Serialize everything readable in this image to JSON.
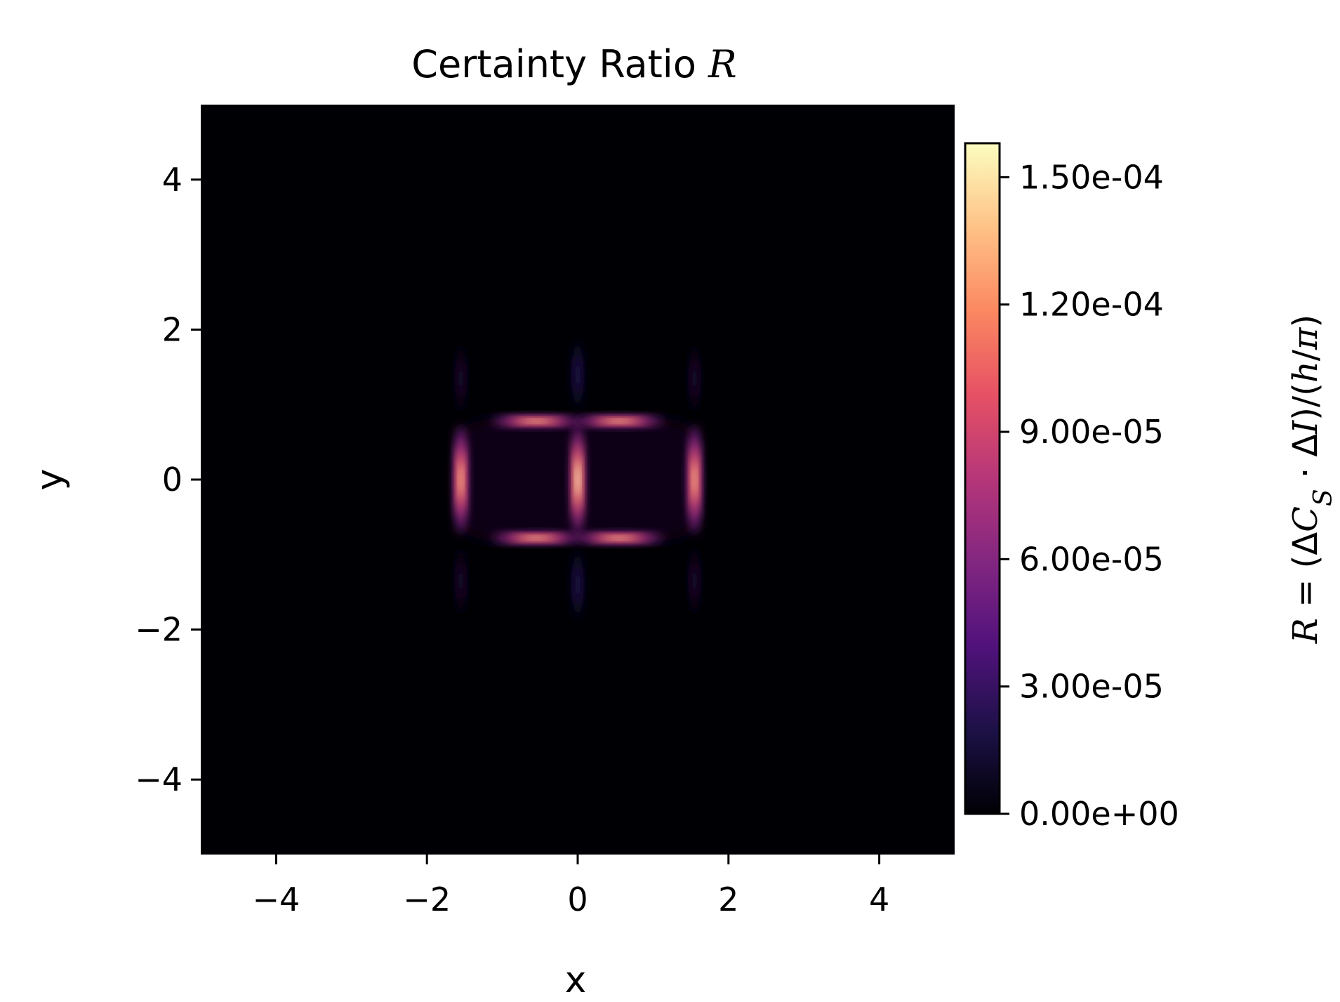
{
  "chart_data": {
    "type": "heatmap",
    "title": {
      "text": "Certainty Ratio ",
      "symbol": "R"
    },
    "xlabel": "x",
    "ylabel": "y",
    "xlim": [
      -5,
      5
    ],
    "ylim": [
      -5,
      5
    ],
    "xticks": [
      -4,
      -2,
      0,
      2,
      4
    ],
    "yticks": [
      -4,
      -2,
      0,
      2,
      4
    ],
    "xtick_labels": [
      "−4",
      "−2",
      "0",
      "2",
      "4"
    ],
    "ytick_labels": [
      "−4",
      "−2",
      "0",
      "2",
      "4"
    ],
    "colormap": "magma",
    "colorbar": {
      "min": 0,
      "max": 0.000158,
      "ticks": [
        0,
        3e-05,
        6e-05,
        9e-05,
        0.00012,
        0.00015
      ],
      "tick_labels": [
        "0.00e+00",
        "3.00e-05",
        "6.00e-05",
        "9.00e-05",
        "1.20e-04",
        "1.50e-04"
      ],
      "label": "R = (ΔC_S · ΔI)/(h/π)"
    },
    "grid": false,
    "hotspots": [
      {
        "x": 0,
        "y": 0,
        "value": 0.000158,
        "shape": "vertical"
      },
      {
        "x": -1.55,
        "y": 0,
        "value": 0.000135,
        "shape": "vertical"
      },
      {
        "x": 1.55,
        "y": 0,
        "value": 0.000135,
        "shape": "vertical"
      },
      {
        "x": -0.55,
        "y": 0.78,
        "value": 0.000135,
        "shape": "horizontal"
      },
      {
        "x": 0.55,
        "y": 0.78,
        "value": 0.000135,
        "shape": "horizontal"
      },
      {
        "x": -0.55,
        "y": -0.78,
        "value": 0.000135,
        "shape": "horizontal"
      },
      {
        "x": 0.55,
        "y": -0.78,
        "value": 0.000135,
        "shape": "horizontal"
      },
      {
        "x": 0,
        "y": 1.4,
        "value": 2e-05,
        "shape": "vertical"
      },
      {
        "x": 0,
        "y": -1.4,
        "value": 2e-05,
        "shape": "vertical"
      },
      {
        "x": -1.55,
        "y": 1.35,
        "value": 1.2e-05,
        "shape": "vertical"
      },
      {
        "x": 1.55,
        "y": 1.35,
        "value": 1.2e-05,
        "shape": "vertical"
      },
      {
        "x": -1.55,
        "y": -1.35,
        "value": 1.2e-05,
        "shape": "vertical"
      },
      {
        "x": 1.55,
        "y": -1.35,
        "value": 1.2e-05,
        "shape": "vertical"
      }
    ],
    "background_region": {
      "x": [
        -1.6,
        1.6
      ],
      "y": [
        -0.8,
        0.8
      ],
      "value": 6e-06
    }
  },
  "colors": {
    "magma_stops": [
      "#000004",
      "#1d1147",
      "#51127c",
      "#822681",
      "#b63679",
      "#e65164",
      "#fb8861",
      "#fec287",
      "#fcfdbf"
    ]
  }
}
